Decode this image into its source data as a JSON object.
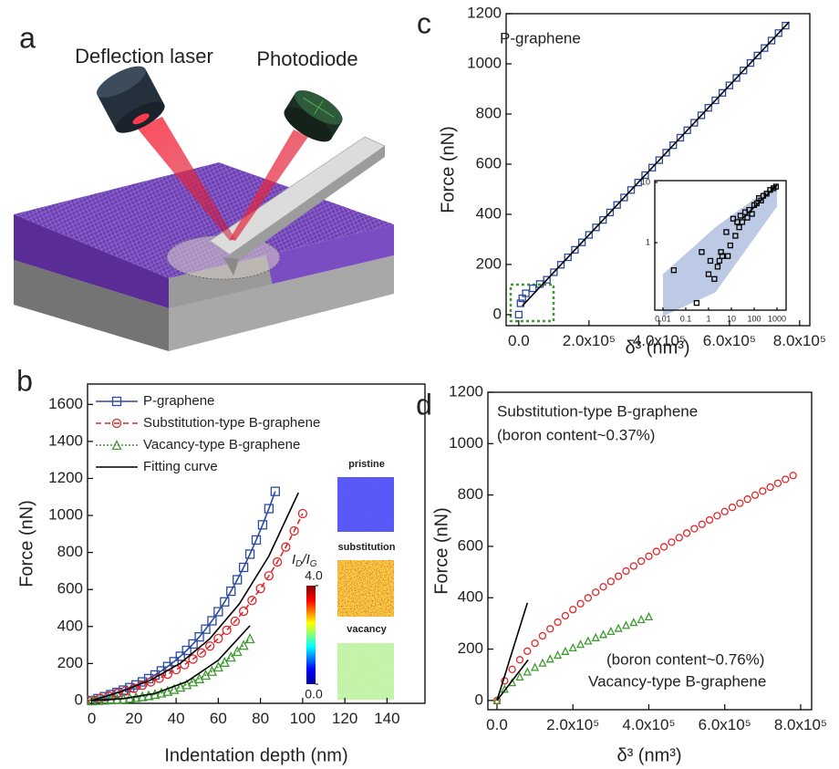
{
  "schematic": {
    "label": "a",
    "texts": [
      "Deflection laser",
      "Photodiode"
    ]
  },
  "chart_data": [
    {
      "type": "line",
      "label": "b",
      "x_label": "Indentation depth (nm)",
      "y_label": "Force (nN)",
      "xlim": [
        -2,
        158
      ],
      "ylim": [
        -15,
        1710
      ],
      "xticks": [
        0,
        20,
        40,
        60,
        80,
        100,
        120,
        140
      ],
      "yticks": [
        0,
        200,
        400,
        600,
        800,
        1000,
        1200,
        1400,
        1600
      ],
      "legend": "upper left",
      "series": [
        {
          "name": "P-graphene",
          "color": "#2b4a9e",
          "marker": "square",
          "line_style": "solid",
          "x": [
            0,
            3,
            6,
            9,
            12,
            15,
            18,
            21,
            24,
            27,
            30,
            33,
            36,
            39,
            42,
            45,
            48,
            51,
            54,
            57,
            60,
            63,
            66,
            69,
            72,
            75,
            78,
            81,
            84,
            87
          ],
          "values": [
            0,
            10.5,
            21.1,
            32.2,
            43.9,
            56.4,
            69.9,
            84.6,
            100.8,
            118.5,
            138.2,
            159.9,
            183.7,
            210.1,
            239.1,
            270.9,
            305.8,
            343.9,
            385.6,
            430.9,
            480,
            533.2,
            590.8,
            652.7,
            719.4,
            790.9,
            867.6,
            949.5,
            1036.9,
            1130
          ]
        },
        {
          "name": "Substitution-type B-graphene",
          "color": "#e0262b",
          "marker": "circle",
          "line_style": "dashed",
          "x": [
            0,
            4,
            8,
            12,
            16,
            20,
            24,
            28,
            32,
            36,
            40,
            44,
            48,
            52,
            56,
            60,
            64,
            68,
            72,
            76,
            80,
            84,
            88,
            92,
            96,
            100
          ],
          "values": [
            0,
            12.2,
            24.7,
            37.7,
            51.5,
            66.4,
            82.7,
            100.6,
            120.4,
            142.4,
            166.8,
            193.9,
            224,
            257.4,
            294.2,
            334.9,
            379.7,
            428.7,
            482.4,
            540.9,
            604.7,
            673.8,
            748.6,
            829.4,
            916.4,
            1010
          ]
        },
        {
          "name": "Vacancy-type B-graphene",
          "color": "#3d9a2e",
          "marker": "triangle",
          "line_style": "dotted",
          "x": [
            0,
            3,
            6,
            9,
            12,
            15,
            18,
            21,
            24,
            27,
            30,
            33,
            36,
            39,
            42,
            45,
            48,
            51,
            54,
            57,
            60,
            63,
            66,
            69,
            72,
            75
          ],
          "values": [
            0,
            1.5,
            3.1,
            5,
            7.2,
            9.8,
            13,
            16.9,
            21.6,
            27.3,
            33.9,
            41.7,
            50.7,
            61.2,
            73.1,
            86.6,
            101.9,
            118.9,
            137.9,
            158.9,
            182.2,
            207.7,
            235.7,
            266.1,
            299.1,
            335
          ]
        },
        {
          "name": "Fitting curve",
          "color": "#000000",
          "marker": "none",
          "line_style": "solid",
          "x": [
            0,
            14,
            28,
            42,
            56,
            70,
            84,
            98,
            null,
            0,
            15,
            30,
            45,
            60,
            75
          ],
          "values": [
            0,
            48.5,
            111,
            201.6,
            334,
            522.6,
            781,
            1123,
            null,
            0,
            10.4,
            38.5,
            101.8,
            217.9,
            404.5
          ]
        }
      ],
      "insets": {
        "labels": [
          {
            "text": "pristine",
            "color": "#1f1fd6"
          },
          {
            "text": "substitution",
            "color": "#e0262b"
          },
          {
            "text": "vacancy",
            "color": "#3d9a2e"
          }
        ],
        "colorbar": {
          "label": [
            "I",
            "D",
            "/I",
            "G"
          ],
          "lim": [
            0,
            4
          ],
          "ticks": [
            {
              "value": 4,
              "label": "4.0"
            },
            {
              "value": 0,
              "label": "0.0"
            }
          ]
        }
      }
    },
    {
      "type": "scatter",
      "label": "c",
      "x_label": "δ³ (nm³)",
      "y_label": "Force (nN)",
      "xlim": [
        -36000,
        829000
      ],
      "ylim": [
        -44,
        1200
      ],
      "xticks": [
        {
          "value": 0,
          "label": "0.0"
        },
        {
          "value": 200000,
          "label": "2.0x10⁵"
        },
        {
          "value": 400000,
          "label": "4.0x10⁵"
        },
        {
          "value": 600000,
          "label": "6.0x10⁵"
        },
        {
          "value": 800000,
          "label": "8.0x10⁵"
        }
      ],
      "yticks": [
        0,
        200,
        400,
        600,
        800,
        1000,
        1200
      ],
      "annotations": [
        {
          "text": "P-graphene",
          "color": "#2b4a9e"
        }
      ],
      "series": [
        {
          "color": "#2b4a9e",
          "marker": "square",
          "line_style": "none",
          "x": [
            0,
            5000,
            10000,
            20000,
            40000,
            60000,
            80000,
            100000,
            120000,
            140000,
            160000,
            180000,
            200000,
            220000,
            240000,
            260000,
            280000,
            300000,
            320000,
            340000,
            360000,
            380000,
            400000,
            420000,
            440000,
            460000,
            480000,
            500000,
            520000,
            540000,
            560000,
            580000,
            600000,
            620000,
            640000,
            660000,
            680000,
            700000,
            720000,
            740000,
            760000
          ],
          "values": [
            0,
            45,
            65,
            85,
            105,
            122,
            139.2,
            169,
            198.8,
            228.6,
            258.4,
            288.2,
            318,
            347.8,
            377.6,
            407.4,
            437.2,
            467,
            496.8,
            526.6,
            556.4,
            586.2,
            616,
            645.8,
            675.6,
            705.4,
            735.2,
            765,
            794.8,
            824.6,
            854.4,
            884.2,
            914,
            943.8,
            973.6,
            1003.4,
            1033.2,
            1063,
            1092.8,
            1122.6,
            1152.4
          ]
        },
        {
          "color": "#000000",
          "marker": "none",
          "line_style": "solid",
          "x": [
            10000,
            770000
          ],
          "values": [
            35,
            1167
          ]
        }
      ],
      "inset": {
        "type": "scatter",
        "log": true,
        "xlim": [
          0.0044,
          2500
        ],
        "ylim": [
          0.076,
          10.7
        ],
        "xticks": [
          0.01,
          0.1,
          1,
          10,
          100,
          1000
        ],
        "yticks": [
          1,
          10
        ],
        "band": {
          "color": "#9fb4dc",
          "x": [
            0.01,
            2,
            1000
          ],
          "lower": [
            0.06,
            0.15,
            4
          ],
          "upper": [
            0.3,
            1.8,
            10
          ]
        },
        "series": [
          {
            "color": "#000000",
            "marker": "square",
            "line_style": "none",
            "x": [
              0.03,
              0.3,
              0.5,
              1,
              1.2,
              1.8,
              2.5,
              3,
              3.5,
              4,
              6,
              7,
              9,
              12,
              15,
              18,
              22,
              25,
              30,
              40,
              50,
              60,
              80,
              100,
              130,
              160,
              200,
              250,
              350,
              500,
              700,
              900
            ],
            "values": [
              0.35,
              0.1,
              0.7,
              0.3,
              0.5,
              0.25,
              0.4,
              0.5,
              0.7,
              0.6,
              1.5,
              0.6,
              0.9,
              2.5,
              1.3,
              2.2,
              1.8,
              2.8,
              2.2,
              3.2,
              2.6,
              3.5,
              3,
              4.2,
              4.5,
              5.5,
              5,
              6,
              6.5,
              7.5,
              8,
              8.5
            ]
          },
          {
            "color": "#000000",
            "marker": "none",
            "line_style": "solid",
            "x": [
              30,
              1000
            ],
            "values": [
              2.5,
              9
            ]
          }
        ]
      }
    },
    {
      "type": "scatter",
      "label": "d",
      "x_label": "δ³ (nm³)",
      "y_label": "Force (nN)",
      "xlim": [
        -24000,
        829000
      ],
      "ylim": [
        -36,
        1200
      ],
      "xticks": [
        {
          "value": 0,
          "label": "0.0"
        },
        {
          "value": 200000,
          "label": "2.0x10⁵"
        },
        {
          "value": 400000,
          "label": "4.0x10⁵"
        },
        {
          "value": 600000,
          "label": "6.0x10⁵"
        },
        {
          "value": 800000,
          "label": "8.0x10⁵"
        }
      ],
      "yticks": [
        0,
        200,
        400,
        600,
        800,
        1000,
        1200
      ],
      "annotations": [
        {
          "text": "Substitution-type B-graphene",
          "color": "#e0262b"
        },
        {
          "text": "(boron content~0.37%)",
          "color": "#e0262b"
        },
        {
          "text": "(boron content~0.76%)",
          "color": "#3d9a2e"
        },
        {
          "text": "Vacancy-type B-graphene",
          "color": "#3d9a2e"
        }
      ],
      "series": [
        {
          "color": "#e0262b",
          "marker": "circle",
          "line_style": "none",
          "x": [
            0,
            20000,
            40000,
            60000,
            80000,
            100000,
            120000,
            140000,
            160000,
            180000,
            200000,
            220000,
            240000,
            260000,
            280000,
            300000,
            320000,
            340000,
            360000,
            380000,
            400000,
            420000,
            440000,
            460000,
            480000,
            500000,
            520000,
            540000,
            560000,
            580000,
            600000,
            620000,
            640000,
            660000,
            680000,
            700000,
            720000,
            740000,
            760000,
            780000
          ],
          "values": [
            0,
            76.2,
            120.9,
            158.5,
            192,
            222.8,
            251.6,
            278.8,
            304.8,
            329.7,
            353.7,
            376.8,
            399.3,
            421.3,
            442.6,
            463.4,
            483.8,
            503.7,
            523.3,
            542.5,
            561.4,
            580,
            598.2,
            616.2,
            633.9,
            651.4,
            668.6,
            685.7,
            702.6,
            719.2,
            735.6,
            751.8,
            767.9,
            783.8,
            799.5,
            815.1,
            830.5,
            845.8,
            860.9,
            875.9
          ]
        },
        {
          "color": "#3d9a2e",
          "marker": "triangle",
          "line_style": "none",
          "x": [
            0,
            20000,
            40000,
            60000,
            80000,
            100000,
            120000,
            140000,
            160000,
            180000,
            200000,
            220000,
            240000,
            260000,
            280000,
            300000,
            320000,
            340000,
            360000,
            380000,
            400000
          ],
          "values": [
            0,
            44.4,
            70.4,
            92.3,
            111.8,
            129.7,
            146.5,
            162.3,
            177.4,
            191.9,
            205.9,
            219.4,
            232.5,
            245.3,
            257.7,
            269.8,
            281.7,
            293.3,
            304.7,
            315.8,
            326.8
          ]
        },
        {
          "color": "#000000",
          "marker": "none",
          "line_style": "solid",
          "x": [
            0,
            80000
          ],
          "values": [
            0,
            380
          ]
        },
        {
          "color": "#000000",
          "marker": "none",
          "line_style": "solid",
          "x": [
            0,
            82000
          ],
          "values": [
            0,
            158
          ]
        }
      ]
    }
  ]
}
